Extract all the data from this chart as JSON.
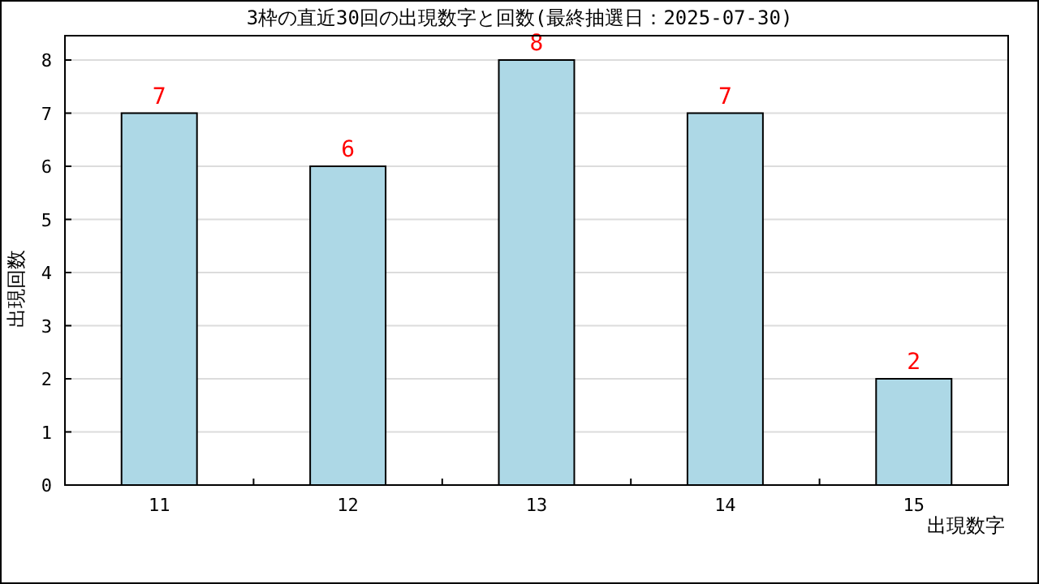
{
  "chart_data": {
    "type": "bar",
    "title": "3枠の直近30回の出現数字と回数(最終抽選日：2025-07-30)",
    "xlabel": "出現数字",
    "ylabel": "出現回数",
    "categories": [
      "11",
      "12",
      "13",
      "14",
      "15"
    ],
    "values": [
      7,
      6,
      8,
      7,
      2
    ],
    "color": "#add8e6",
    "ylim": [
      0,
      8
    ],
    "yticks": [
      0,
      1,
      2,
      3,
      4,
      5,
      6,
      7,
      8
    ],
    "grid": "y",
    "data_labels": true
  }
}
